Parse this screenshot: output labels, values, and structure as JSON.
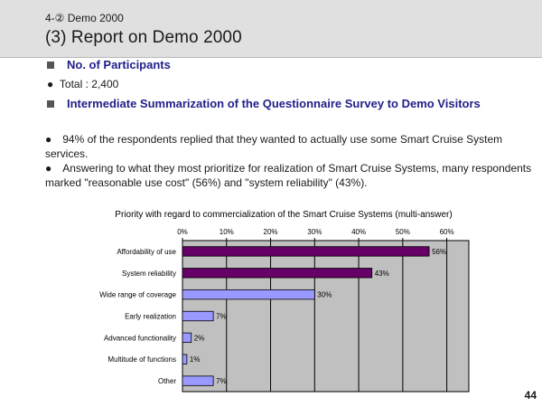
{
  "header": {
    "breadcrumb": "4-② Demo 2000",
    "title": "(3) Report on Demo 2000"
  },
  "items": {
    "participants_heading": "No. of Participants",
    "total": "Total : 2,400",
    "survey_heading": "Intermediate Summarization of the Questionnaire Survey to Demo Visitors"
  },
  "body": {
    "para1": "●　94% of the respondents replied that they wanted to actually use some Smart Cruise System services.",
    "para2": "●　Answering to what they most prioritize for realization of Smart Cruise Systems, many respondents marked \"reasonable use cost\" (56%) and \"system reliability\" (43%)."
  },
  "chart_data": {
    "type": "bar",
    "orientation": "horizontal",
    "title": "Priority with regard to commercialization of the Smart Cruise Systems (multi-answer)",
    "categories": [
      "Affordability of use",
      "System reliability",
      "Wide range of coverage",
      "Early realization",
      "Advanced functionality",
      "Multitude of functions",
      "Other"
    ],
    "values": [
      56,
      43,
      30,
      7,
      2,
      1,
      7
    ],
    "value_labels": [
      "56%",
      "43%",
      "30%",
      "7%",
      "2%",
      "1%",
      "7%"
    ],
    "xlim": [
      0,
      65
    ],
    "ticks": [
      0,
      10,
      20,
      30,
      40,
      50,
      60
    ],
    "tick_labels": [
      "0%",
      "10%",
      "20%",
      "30%",
      "40%",
      "50%",
      "60%"
    ],
    "tick_position": "top",
    "grid": true,
    "colors": {
      "highlight": "#660066",
      "normal": "#9999ff",
      "plot_bg": "#c0c0c0",
      "grid": "#000000"
    },
    "highlighted": [
      true,
      true,
      false,
      false,
      false,
      false,
      false
    ]
  },
  "page_number": "44"
}
